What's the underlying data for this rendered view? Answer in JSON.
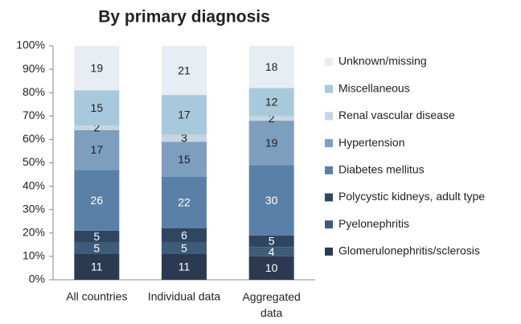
{
  "chart_data": {
    "type": "stacked_bar",
    "title": "By primary diagnosis",
    "categories": [
      "All countries",
      "Individual data",
      "Aggregated data"
    ],
    "series": [
      {
        "name": "Glomerulonephritis/sclerosis",
        "color": "#2c3a51",
        "values": [
          11,
          11,
          10
        ]
      },
      {
        "name": "Pyelonephritis",
        "color": "#3e5b79",
        "values": [
          5,
          5,
          4
        ]
      },
      {
        "name": "Polycystic kidneys, adult type",
        "color": "#2f4661",
        "values": [
          5,
          6,
          5
        ]
      },
      {
        "name": "Diabetes mellitus",
        "color": "#5b80a7",
        "values": [
          26,
          22,
          30
        ]
      },
      {
        "name": "Hypertension",
        "color": "#7e9ebe",
        "values": [
          17,
          15,
          19
        ]
      },
      {
        "name": "Renal vascular disease",
        "color": "#c5d5e2",
        "values": [
          2,
          3,
          2
        ]
      },
      {
        "name": "Miscellaneous",
        "color": "#a8c9db",
        "values": [
          15,
          17,
          12
        ]
      },
      {
        "name": "Unknown/missing",
        "color": "#e7edf2",
        "values": [
          19,
          21,
          18
        ]
      }
    ],
    "ylim": [
      0,
      100
    ],
    "yticks": [
      {
        "value": 0,
        "label": "0%"
      },
      {
        "value": 10,
        "label": "10%"
      },
      {
        "value": 20,
        "label": "20%"
      },
      {
        "value": 30,
        "label": "30%"
      },
      {
        "value": 40,
        "label": "40%"
      },
      {
        "value": 50,
        "label": "50%"
      },
      {
        "value": 60,
        "label": "60%"
      },
      {
        "value": 70,
        "label": "70%"
      },
      {
        "value": 80,
        "label": "80%"
      },
      {
        "value": 90,
        "label": "90%"
      },
      {
        "value": 100,
        "label": "100%"
      }
    ],
    "legend": "right"
  }
}
